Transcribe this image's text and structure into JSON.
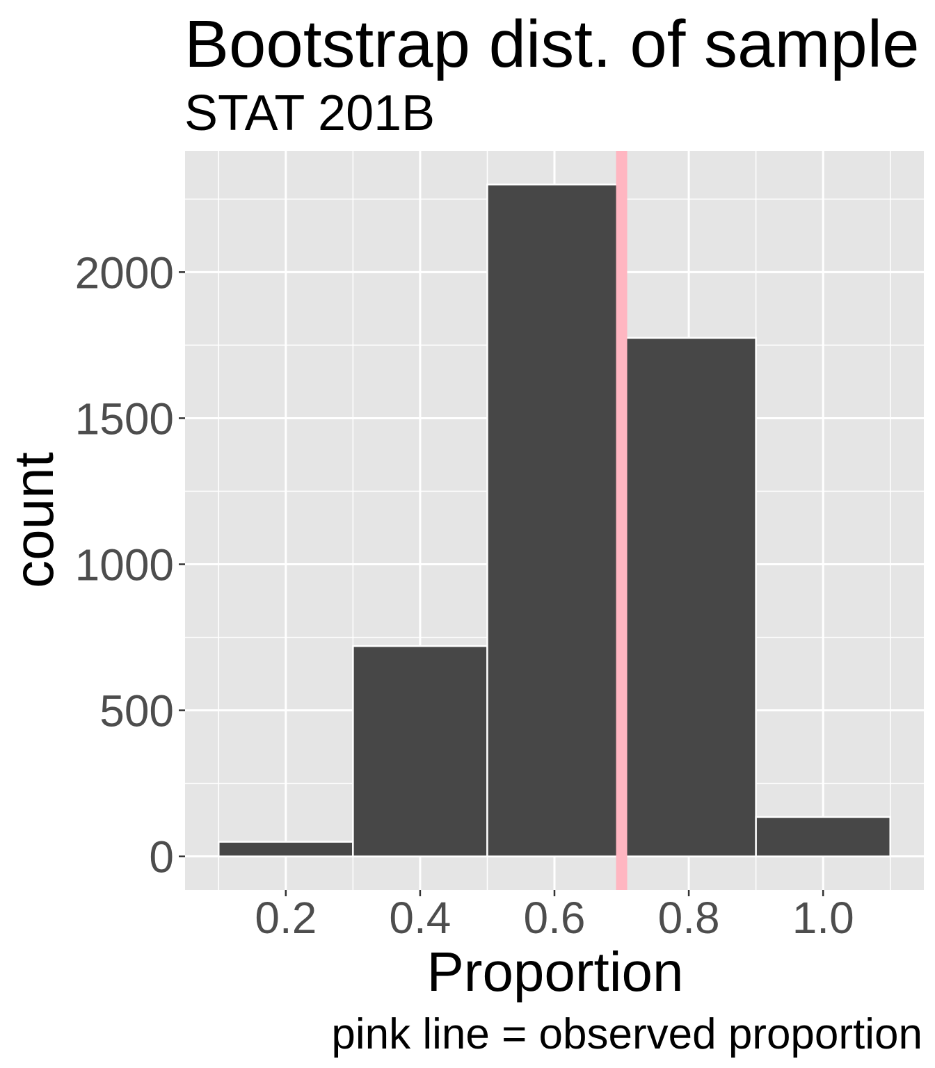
{
  "chart_data": {
    "type": "bar",
    "title": "Bootstrap dist. of sample",
    "subtitle": "STAT 201B",
    "xlabel": "Proportion",
    "ylabel": "count",
    "caption": "pink line = observed proportion",
    "bins": [
      {
        "x": 0.2,
        "count": 50
      },
      {
        "x": 0.4,
        "count": 720
      },
      {
        "x": 0.6,
        "count": 2300
      },
      {
        "x": 0.8,
        "count": 1775
      },
      {
        "x": 1.0,
        "count": 135
      }
    ],
    "binwidth": 0.2,
    "xlim": [
      0.05,
      1.15
    ],
    "ylim": [
      -115,
      2415
    ],
    "xticks": [
      0.2,
      0.4,
      0.6,
      0.8,
      1.0
    ],
    "xtick_labels": [
      "0.2",
      "0.4",
      "0.6",
      "0.8",
      "1.0"
    ],
    "yticks": [
      0,
      500,
      1000,
      1500,
      2000
    ],
    "ytick_labels": [
      "0",
      "500",
      "1000",
      "1500",
      "2000"
    ],
    "observed_proportion": 0.7,
    "grid": true,
    "colors": {
      "bar_fill": "#474747",
      "bar_outline": "#ffffff",
      "panel_background": "#e5e5e5",
      "grid": "#ffffff",
      "observed_line": "#ffb6c1"
    }
  }
}
